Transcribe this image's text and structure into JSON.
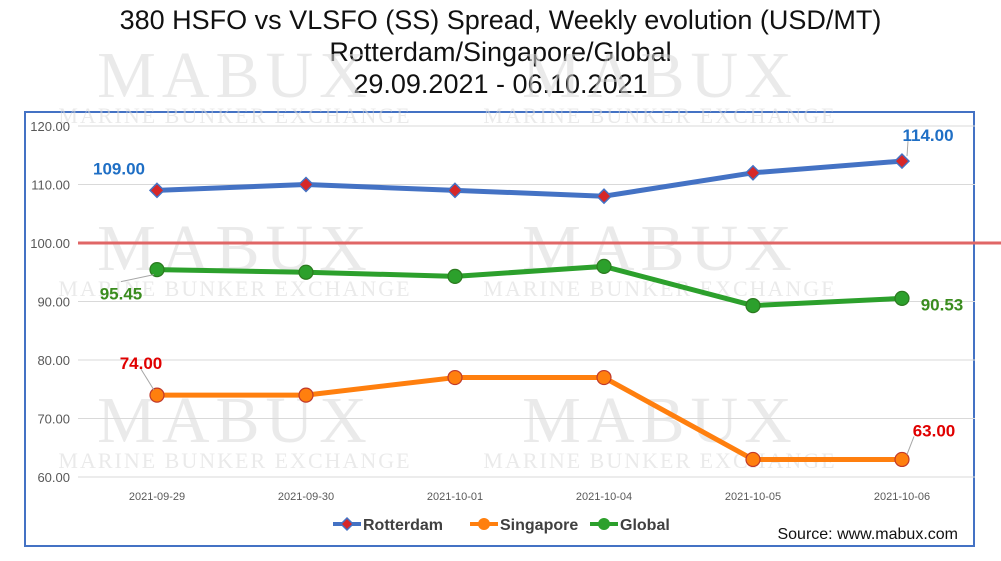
{
  "chart_data": {
    "type": "line",
    "title": "380 HSFO vs VLSFO (SS) Spread, Weekly evolution (USD/MT)",
    "subtitle": "Rotterdam/Singapore/Global",
    "date_range": "29.09.2021 - 06.10.2021",
    "categories": [
      "2021-09-29",
      "2021-09-30",
      "2021-10-01",
      "2021-10-04",
      "2021-10-05",
      "2021-10-06"
    ],
    "ylim": [
      60,
      120
    ],
    "yticks": [
      "60.00",
      "70.00",
      "80.00",
      "90.00",
      "100.00",
      "110.00",
      "120.00"
    ],
    "reference_line": 100,
    "grid": true,
    "legend_position": "bottom",
    "series": [
      {
        "name": "Rotterdam",
        "color": "#4472c4",
        "marker_color": "#d62728",
        "marker": "diamond",
        "values": [
          109,
          110,
          109,
          108,
          112,
          114
        ]
      },
      {
        "name": "Singapore",
        "color": "#ff7f0e",
        "marker_color": "#ff7f0e",
        "marker": "circle",
        "values": [
          74,
          74,
          77,
          77,
          63,
          63
        ]
      },
      {
        "name": "Global",
        "color": "#2ca02c",
        "marker_color": "#2ca02c",
        "marker": "circle",
        "values": [
          95.45,
          95,
          94.3,
          96,
          89.3,
          90.53
        ]
      }
    ],
    "annotations": [
      {
        "series": "Rotterdam",
        "index": 0,
        "text": "109.00",
        "color": "#1f6fc5"
      },
      {
        "series": "Rotterdam",
        "index": 5,
        "text": "114.00",
        "color": "#1f6fc5"
      },
      {
        "series": "Global",
        "index": 0,
        "text": "95.45",
        "color": "#3a8c1e"
      },
      {
        "series": "Global",
        "index": 5,
        "text": "90.53",
        "color": "#3a8c1e"
      },
      {
        "series": "Singapore",
        "index": 0,
        "text": "74.00",
        "color": "#e00000"
      },
      {
        "series": "Singapore",
        "index": 5,
        "text": "63.00",
        "color": "#e00000"
      }
    ],
    "source": "Source: www.mabux.com"
  },
  "watermark": {
    "logo": "MABUX",
    "tagline": "Marine Bunker Exchange"
  }
}
